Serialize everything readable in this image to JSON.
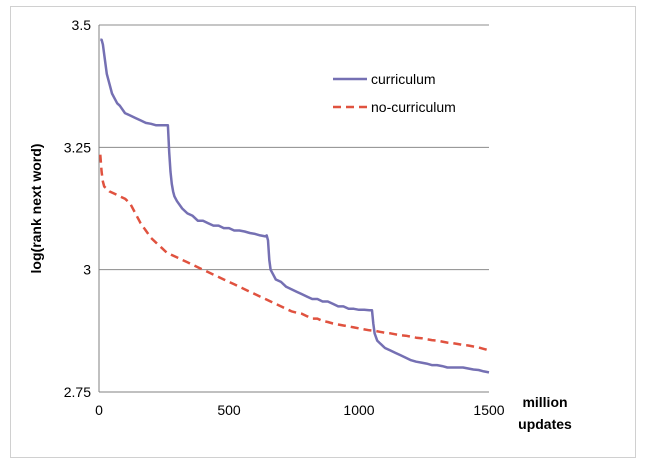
{
  "chart_data": {
    "type": "line",
    "title": "",
    "xlabel": "million updates",
    "ylabel": "log(rank next word)",
    "xlim": [
      0,
      1500
    ],
    "ylim": [
      2.75,
      3.5
    ],
    "x_ticks": [
      0,
      500,
      1000,
      1500
    ],
    "x_tick_labels": [
      "0",
      "500",
      "1000",
      "1500"
    ],
    "y_ticks": [
      2.75,
      3,
      3.25,
      3.5
    ],
    "y_tick_labels": [
      "2.75",
      "3",
      "3.25",
      "3.5"
    ],
    "grid": "horizontal",
    "legend_position": "top-right",
    "series": [
      {
        "name": "curriculum",
        "color": "#7570b3",
        "style": "solid",
        "x": [
          5,
          10,
          15,
          20,
          30,
          40,
          50,
          60,
          70,
          80,
          100,
          120,
          140,
          160,
          180,
          200,
          220,
          240,
          255,
          265,
          270,
          275,
          280,
          285,
          290,
          300,
          320,
          340,
          360,
          380,
          400,
          420,
          440,
          460,
          480,
          500,
          520,
          540,
          560,
          580,
          600,
          620,
          640,
          645,
          650,
          655,
          660,
          670,
          680,
          700,
          720,
          740,
          760,
          780,
          800,
          820,
          840,
          860,
          880,
          900,
          920,
          940,
          960,
          980,
          1000,
          1020,
          1040,
          1050,
          1055,
          1060,
          1070,
          1080,
          1100,
          1120,
          1140,
          1160,
          1180,
          1200,
          1220,
          1240,
          1260,
          1280,
          1300,
          1320,
          1340,
          1360,
          1380,
          1400,
          1420,
          1440,
          1460,
          1480,
          1500
        ],
        "y": [
          3.47,
          3.47,
          3.46,
          3.44,
          3.4,
          3.38,
          3.36,
          3.35,
          3.34,
          3.335,
          3.32,
          3.315,
          3.31,
          3.305,
          3.3,
          3.298,
          3.295,
          3.295,
          3.295,
          3.295,
          3.24,
          3.2,
          3.175,
          3.16,
          3.15,
          3.14,
          3.125,
          3.115,
          3.11,
          3.1,
          3.1,
          3.095,
          3.09,
          3.09,
          3.085,
          3.085,
          3.08,
          3.08,
          3.078,
          3.075,
          3.073,
          3.07,
          3.068,
          3.07,
          3.06,
          3.02,
          3.0,
          2.99,
          2.98,
          2.975,
          2.965,
          2.96,
          2.955,
          2.95,
          2.945,
          2.94,
          2.94,
          2.935,
          2.935,
          2.93,
          2.925,
          2.925,
          2.92,
          2.92,
          2.918,
          2.918,
          2.917,
          2.917,
          2.89,
          2.87,
          2.855,
          2.85,
          2.84,
          2.835,
          2.83,
          2.825,
          2.82,
          2.815,
          2.812,
          2.81,
          2.808,
          2.805,
          2.805,
          2.803,
          2.8,
          2.8,
          2.8,
          2.8,
          2.798,
          2.796,
          2.795,
          2.792,
          2.79
        ]
      },
      {
        "name": "no-curriculum",
        "color": "#e0523f",
        "style": "dashed",
        "x": [
          5,
          10,
          15,
          20,
          30,
          40,
          60,
          80,
          100,
          120,
          140,
          160,
          180,
          200,
          220,
          240,
          260,
          280,
          300,
          320,
          340,
          360,
          380,
          400,
          420,
          440,
          460,
          480,
          500,
          520,
          540,
          560,
          580,
          600,
          620,
          640,
          660,
          680,
          700,
          720,
          740,
          760,
          780,
          800,
          820,
          840,
          860,
          880,
          900,
          920,
          940,
          960,
          980,
          1000,
          1020,
          1040,
          1060,
          1080,
          1100,
          1120,
          1140,
          1160,
          1180,
          1200,
          1220,
          1240,
          1260,
          1280,
          1300,
          1320,
          1340,
          1360,
          1380,
          1400,
          1420,
          1440,
          1460,
          1480,
          1500
        ],
        "y": [
          3.235,
          3.2,
          3.18,
          3.17,
          3.165,
          3.16,
          3.155,
          3.15,
          3.145,
          3.135,
          3.115,
          3.095,
          3.08,
          3.065,
          3.055,
          3.045,
          3.035,
          3.03,
          3.025,
          3.02,
          3.015,
          3.01,
          3.005,
          3.0,
          2.995,
          2.99,
          2.985,
          2.98,
          2.975,
          2.97,
          2.965,
          2.96,
          2.955,
          2.95,
          2.945,
          2.94,
          2.935,
          2.93,
          2.925,
          2.92,
          2.915,
          2.912,
          2.91,
          2.905,
          2.9,
          2.9,
          2.895,
          2.893,
          2.89,
          2.888,
          2.886,
          2.884,
          2.882,
          2.88,
          2.878,
          2.876,
          2.875,
          2.873,
          2.871,
          2.87,
          2.868,
          2.866,
          2.865,
          2.863,
          2.861,
          2.86,
          2.858,
          2.856,
          2.855,
          2.853,
          2.851,
          2.85,
          2.848,
          2.846,
          2.845,
          2.843,
          2.841,
          2.838,
          2.835
        ]
      }
    ]
  },
  "xlabel_lines": [
    "million",
    "updates"
  ]
}
